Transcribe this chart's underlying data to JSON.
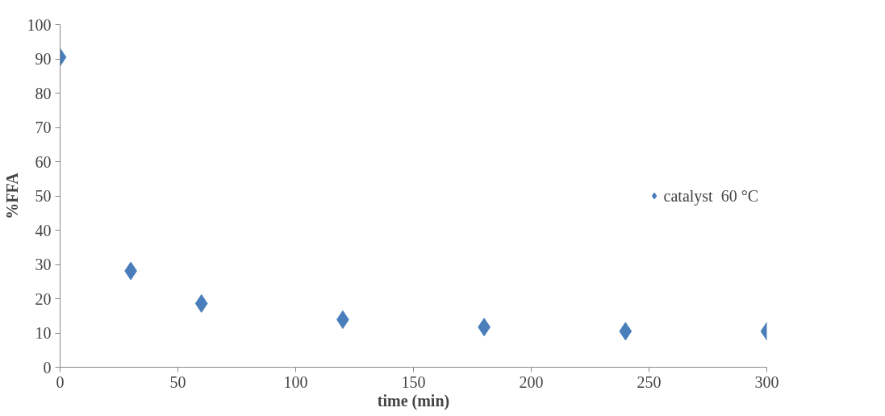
{
  "chart_data": {
    "type": "scatter",
    "xlabel": "time (min)",
    "ylabel": "%FFA",
    "x": [
      0,
      30,
      60,
      120,
      180,
      240,
      300
    ],
    "series": [
      {
        "name": "catalyst  60 °C",
        "color": "#4a7ebb",
        "values": [
          90.5,
          28.1,
          18.6,
          13.9,
          11.7,
          10.5,
          10.5
        ]
      }
    ],
    "xlim": [
      0,
      300
    ],
    "ylim": [
      0,
      100
    ],
    "xticks": [
      0,
      50,
      100,
      150,
      200,
      250,
      300
    ],
    "yticks": [
      0,
      10,
      20,
      30,
      40,
      50,
      60,
      70,
      80,
      90,
      100
    ],
    "marker": "diamond",
    "grid": false,
    "legend": "right"
  }
}
